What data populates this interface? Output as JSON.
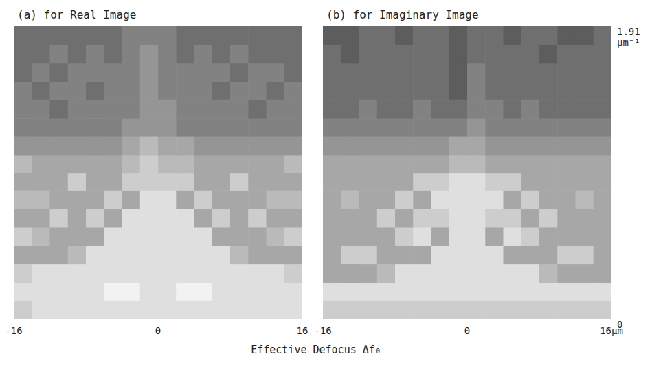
{
  "chart_data": {
    "type": "heatmap",
    "xlabel": "Effective Defocus Δf₀",
    "zlim": [
      0,
      9
    ],
    "x": [
      -15,
      -13,
      -11,
      -9,
      -7,
      -5,
      -3,
      -1,
      1,
      3,
      5,
      7,
      9,
      11,
      13,
      15
    ],
    "y": [
      0.06,
      0.18,
      0.3,
      0.42,
      0.54,
      0.66,
      0.78,
      0.9,
      1.01,
      1.13,
      1.25,
      1.37,
      1.49,
      1.61,
      1.73,
      1.85
    ],
    "panels": [
      {
        "title": "(a) for Real Image",
        "xlim": [
          -16,
          16
        ],
        "xticks": [
          -16,
          0,
          16
        ],
        "ylim": [
          0,
          1.91
        ],
        "tick_labels": "x",
        "values": [
          [
            7,
            8,
            8,
            8,
            8,
            8,
            8,
            8,
            8,
            8,
            8,
            8,
            8,
            8,
            8,
            8
          ],
          [
            8,
            8,
            8,
            8,
            8,
            9,
            9,
            8,
            8,
            9,
            9,
            8,
            8,
            8,
            8,
            8
          ],
          [
            7,
            8,
            8,
            8,
            8,
            8,
            8,
            8,
            8,
            8,
            8,
            8,
            8,
            8,
            8,
            7
          ],
          [
            5,
            5,
            5,
            6,
            8,
            8,
            8,
            8,
            8,
            8,
            8,
            8,
            6,
            5,
            5,
            5
          ],
          [
            7,
            6,
            5,
            5,
            5,
            8,
            8,
            8,
            8,
            8,
            8,
            5,
            5,
            5,
            6,
            7
          ],
          [
            5,
            5,
            7,
            5,
            7,
            5,
            8,
            8,
            8,
            8,
            5,
            7,
            5,
            7,
            5,
            5
          ],
          [
            6,
            6,
            5,
            5,
            5,
            7,
            5,
            8,
            8,
            5,
            7,
            5,
            5,
            5,
            6,
            6
          ],
          [
            5,
            5,
            5,
            7,
            5,
            5,
            7,
            7,
            7,
            7,
            5,
            5,
            7,
            5,
            5,
            5
          ],
          [
            6,
            5,
            5,
            5,
            5,
            5,
            6,
            7,
            6,
            6,
            5,
            5,
            5,
            5,
            5,
            6
          ],
          [
            4,
            4,
            4,
            4,
            4,
            4,
            5,
            6,
            5,
            5,
            4,
            4,
            4,
            4,
            4,
            4
          ],
          [
            3,
            3,
            3,
            3,
            3,
            3,
            4,
            4,
            4,
            3,
            3,
            3,
            3,
            3,
            3,
            3
          ],
          [
            3,
            3,
            2,
            3,
            3,
            3,
            3,
            4,
            4,
            3,
            3,
            3,
            3,
            2,
            3,
            3
          ],
          [
            3,
            2,
            3,
            3,
            2,
            3,
            3,
            4,
            3,
            3,
            3,
            2,
            3,
            3,
            2,
            3
          ],
          [
            2,
            3,
            2,
            3,
            3,
            3,
            3,
            4,
            3,
            3,
            3,
            3,
            2,
            3,
            3,
            2
          ],
          [
            2,
            2,
            3,
            2,
            3,
            2,
            3,
            4,
            3,
            2,
            3,
            2,
            3,
            2,
            2,
            2
          ],
          [
            2,
            2,
            2,
            2,
            2,
            2,
            3,
            3,
            3,
            2,
            2,
            2,
            2,
            2,
            2,
            2
          ]
        ]
      },
      {
        "title": "(b) for Imaginary Image",
        "xlim": [
          -16,
          16
        ],
        "xticks": [
          -16,
          0,
          {
            "value": 16,
            "label": "16µm"
          }
        ],
        "ylim": [
          0,
          1.91
        ],
        "yticks": [
          0,
          {
            "value": 1.91,
            "label": "1.91 µm⁻¹"
          }
        ],
        "values": [
          [
            7,
            7,
            7,
            7,
            7,
            7,
            7,
            7,
            7,
            7,
            7,
            7,
            7,
            7,
            7,
            7
          ],
          [
            8,
            8,
            8,
            8,
            8,
            8,
            8,
            8,
            8,
            8,
            8,
            8,
            8,
            8,
            8,
            8
          ],
          [
            5,
            5,
            5,
            6,
            8,
            8,
            8,
            8,
            8,
            8,
            8,
            8,
            6,
            5,
            5,
            5
          ],
          [
            5,
            7,
            7,
            5,
            5,
            5,
            8,
            8,
            8,
            8,
            5,
            5,
            5,
            7,
            7,
            5
          ],
          [
            5,
            5,
            5,
            5,
            7,
            8,
            5,
            8,
            8,
            5,
            8,
            7,
            5,
            5,
            5,
            5
          ],
          [
            5,
            5,
            5,
            7,
            5,
            7,
            7,
            8,
            8,
            7,
            7,
            5,
            7,
            5,
            5,
            5
          ],
          [
            5,
            6,
            5,
            5,
            7,
            5,
            8,
            8,
            8,
            8,
            5,
            7,
            5,
            5,
            6,
            5
          ],
          [
            5,
            5,
            5,
            5,
            5,
            7,
            7,
            8,
            8,
            7,
            7,
            5,
            5,
            5,
            5,
            5
          ],
          [
            5,
            5,
            5,
            5,
            5,
            5,
            5,
            6,
            6,
            5,
            5,
            5,
            5,
            5,
            5,
            5
          ],
          [
            4,
            4,
            4,
            4,
            4,
            4,
            4,
            5,
            5,
            4,
            4,
            4,
            4,
            4,
            4,
            4
          ],
          [
            3,
            3,
            3,
            3,
            3,
            3,
            3,
            3,
            4,
            3,
            3,
            3,
            3,
            3,
            3,
            3
          ],
          [
            2,
            2,
            3,
            2,
            2,
            3,
            2,
            2,
            3,
            3,
            2,
            3,
            2,
            2,
            2,
            2
          ],
          [
            2,
            2,
            2,
            2,
            2,
            2,
            2,
            1,
            3,
            2,
            2,
            2,
            2,
            2,
            2,
            2
          ],
          [
            2,
            2,
            2,
            2,
            2,
            2,
            2,
            1,
            3,
            2,
            2,
            2,
            2,
            2,
            2,
            2
          ],
          [
            2,
            1,
            2,
            2,
            2,
            2,
            2,
            1,
            2,
            2,
            2,
            2,
            1,
            2,
            2,
            2
          ],
          [
            1,
            1,
            2,
            2,
            1,
            2,
            2,
            1,
            2,
            2,
            1,
            2,
            2,
            1,
            1,
            2
          ]
        ]
      }
    ]
  }
}
